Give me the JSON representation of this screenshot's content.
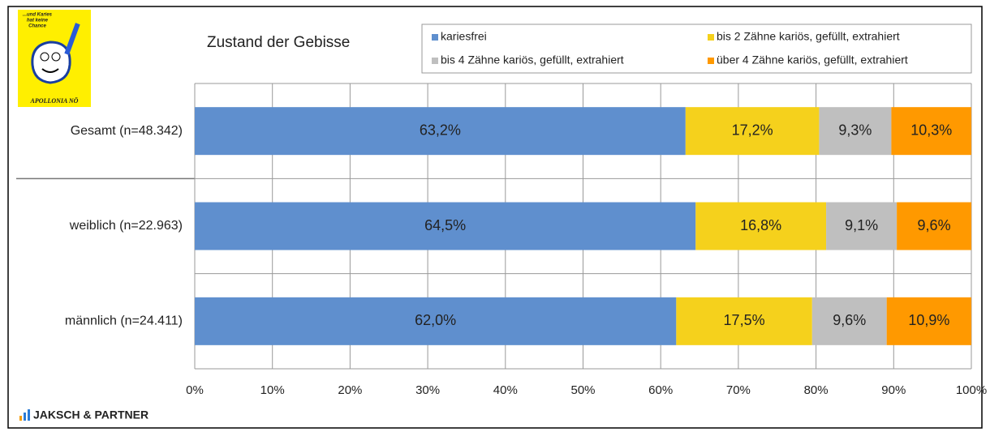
{
  "chart_data": {
    "type": "stacked-bar-horizontal",
    "title": "Zustand der Gebisse",
    "categories": [
      "Gesamt (n=48.342)",
      "weiblich (n=22.963)",
      "männlich (n=24.411)"
    ],
    "series": [
      {
        "name": "kariesfrei",
        "color": "#5f8fce",
        "values": [
          63.2,
          64.5,
          62.0
        ],
        "value_labels": [
          "63,2%",
          "64,5%",
          "62,0%"
        ]
      },
      {
        "name": "bis 2 Zähne kariös, gefüllt, extrahiert",
        "color": "#f5d11c",
        "values": [
          17.2,
          16.8,
          17.5
        ],
        "value_labels": [
          "17,2%",
          "16,8%",
          "17,5%"
        ]
      },
      {
        "name": "bis 4 Zähne kariös, gefüllt, extrahiert",
        "color": "#bfbfbf",
        "values": [
          9.3,
          9.1,
          9.6
        ],
        "value_labels": [
          "9,3%",
          "9,1%",
          "9,6%"
        ]
      },
      {
        "name": "über 4 Zähne kariös, gefüllt, extrahiert",
        "color": "#ff9900",
        "values": [
          10.3,
          9.6,
          10.9
        ],
        "value_labels": [
          "10,3%",
          "9,6%",
          "10,9%"
        ]
      }
    ],
    "xlim": [
      0,
      100
    ],
    "xticks": [
      {
        "value": 0,
        "label": "0%"
      },
      {
        "value": 10,
        "label": "10%"
      },
      {
        "value": 20,
        "label": "20%"
      },
      {
        "value": 30,
        "label": "30%"
      },
      {
        "value": 40,
        "label": "40%"
      },
      {
        "value": 50,
        "label": "50%"
      },
      {
        "value": 60,
        "label": "60%"
      },
      {
        "value": 70,
        "label": "70%"
      },
      {
        "value": 80,
        "label": "80%"
      },
      {
        "value": 90,
        "label": "90%"
      },
      {
        "value": 100,
        "label": "100%"
      }
    ],
    "grid": true
  },
  "branding": {
    "logo_slogan": [
      "...und Karies",
      "hat keine",
      "Chance"
    ],
    "logo_name": "APOLLONIA NÖ",
    "company": "JAKSCH & PARTNER"
  }
}
